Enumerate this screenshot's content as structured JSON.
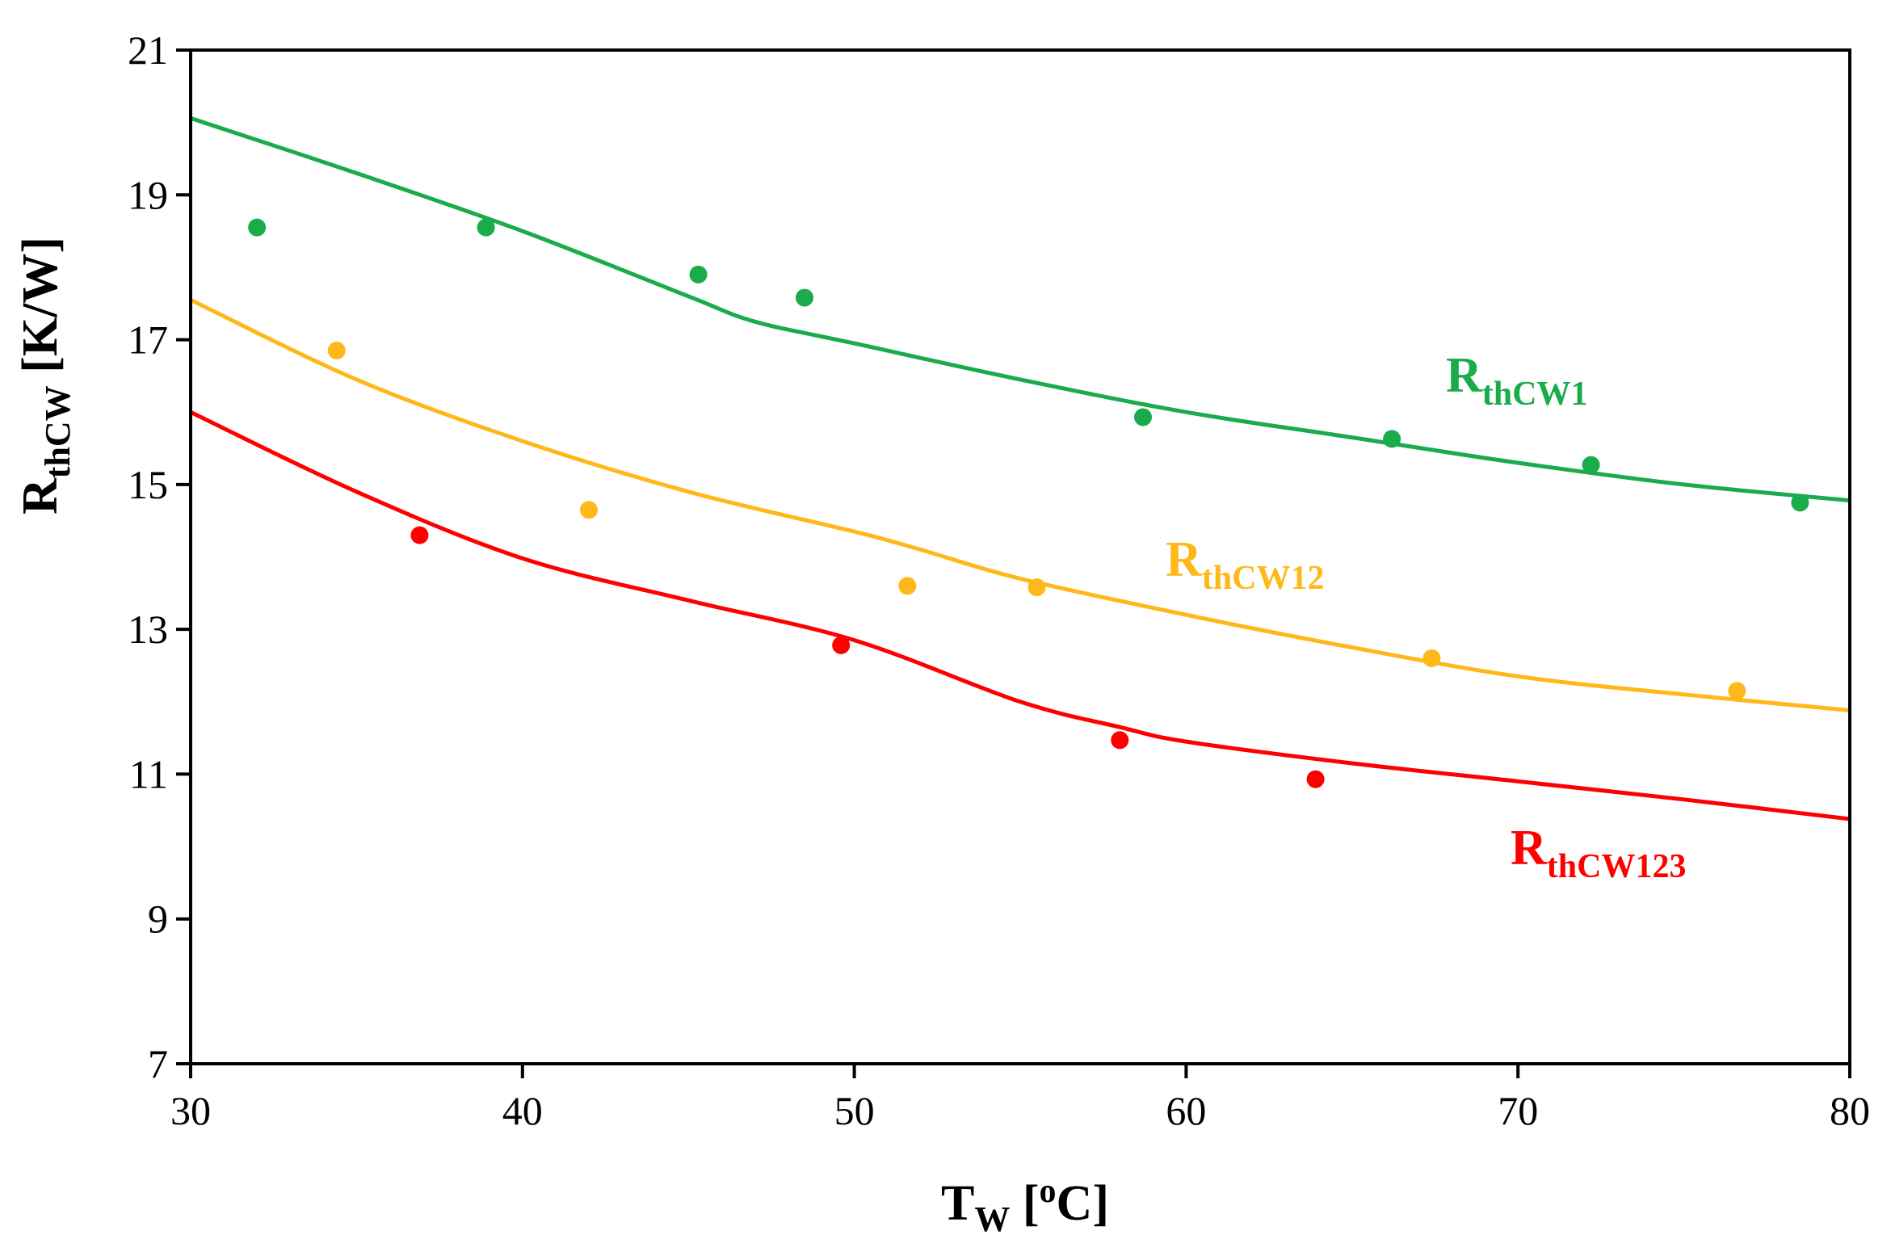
{
  "chart_data": {
    "type": "scatter",
    "title": "",
    "xlabel": {
      "main": "T",
      "sub": "W",
      "rest_open": " [",
      "sup": "o",
      "rest_close": "C]"
    },
    "ylabel": {
      "main": "R",
      "sub": "thCW",
      "rest": " [K/W]"
    },
    "xlim": [
      30,
      80
    ],
    "ylim": [
      7,
      21
    ],
    "xticks": [
      30,
      40,
      50,
      60,
      70,
      80
    ],
    "yticks": [
      7,
      9,
      11,
      13,
      15,
      17,
      19,
      21
    ],
    "grid": false,
    "legend": "inline labels next to curves",
    "series": [
      {
        "name": "RthCW1",
        "label_main": "R",
        "label_sub": "thCW1",
        "color": "#1aab4b",
        "points": {
          "x": [
            32.0,
            38.9,
            45.3,
            48.5,
            58.7,
            66.2,
            72.2,
            78.5
          ],
          "y": [
            18.55,
            18.55,
            17.9,
            17.58,
            15.93,
            15.63,
            15.27,
            14.75
          ]
        },
        "fit": {
          "x": [
            30,
            35,
            40,
            45,
            47,
            50,
            55,
            60,
            65,
            70,
            75,
            80
          ],
          "y": [
            20.06,
            19.3,
            18.5,
            17.6,
            17.25,
            16.95,
            16.45,
            16.0,
            15.65,
            15.3,
            15.0,
            14.78
          ]
        }
      },
      {
        "name": "RthCW12",
        "label_main": "R",
        "label_sub": "thCW12",
        "color": "#ffb81a",
        "points": {
          "x": [
            34.4,
            42.0,
            51.6,
            55.5,
            67.4,
            76.6
          ],
          "y": [
            16.85,
            14.65,
            13.6,
            13.58,
            12.6,
            12.15
          ]
        },
        "fit": {
          "x": [
            30,
            35,
            40,
            45,
            50,
            52,
            55,
            60,
            65,
            70,
            75,
            80
          ],
          "y": [
            17.55,
            16.45,
            15.6,
            14.9,
            14.35,
            14.1,
            13.7,
            13.2,
            12.75,
            12.35,
            12.1,
            11.88
          ]
        }
      },
      {
        "name": "RthCW123",
        "label_main": "R",
        "label_sub": "thCW123",
        "color": "#ff0000",
        "points": {
          "x": [
            36.9,
            49.6,
            58.0,
            63.9
          ],
          "y": [
            14.3,
            12.78,
            11.47,
            10.93
          ]
        },
        "fit": {
          "x": [
            30,
            35,
            40,
            45,
            50,
            55,
            58,
            60,
            65,
            70,
            75,
            80
          ],
          "y": [
            16.0,
            14.9,
            13.98,
            13.4,
            12.85,
            12.0,
            11.65,
            11.45,
            11.15,
            10.9,
            10.65,
            10.38
          ]
        }
      }
    ]
  }
}
